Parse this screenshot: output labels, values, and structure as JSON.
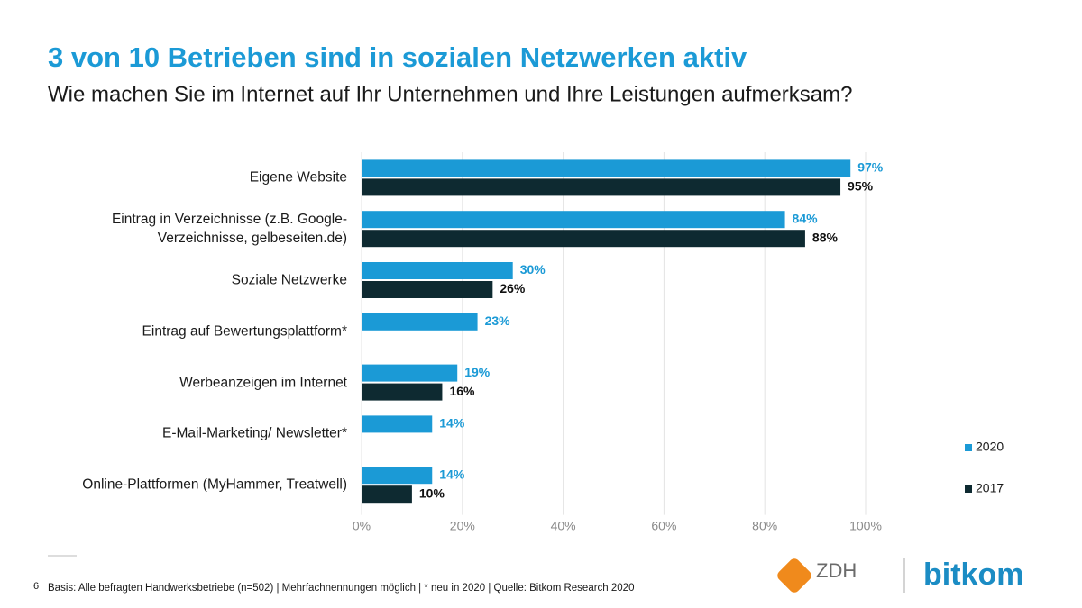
{
  "chart_data": {
    "type": "bar",
    "orientation": "horizontal",
    "title": "3 von 10 Betrieben sind in sozialen Netzwerken aktiv",
    "subtitle": "Wie machen Sie im Internet auf Ihr Unternehmen und Ihre Leistungen aufmerksam?",
    "categories": [
      "Eigene Website",
      "Eintrag in Verzeichnisse (z.B. Google-\nVerzeichnisse, gelbeseiten.de)",
      "Soziale Netzwerke",
      "Eintrag auf Bewertungsplattform*",
      "Werbeanzeigen im Internet",
      "E-Mail-Marketing/ Newsletter*",
      "Online-Plattformen (MyHammer, Treatwell)"
    ],
    "series": [
      {
        "name": "2020",
        "color": "#1b9ad6",
        "values": [
          97,
          84,
          30,
          23,
          19,
          14,
          14
        ],
        "value_labels": [
          "97%",
          "84%",
          "30%",
          "23%",
          "19%",
          "14%",
          "14%"
        ]
      },
      {
        "name": "2017",
        "color": "#0e2a31",
        "values": [
          95,
          88,
          26,
          null,
          16,
          null,
          10
        ],
        "value_labels": [
          "95%",
          "88%",
          "26%",
          null,
          "16%",
          null,
          "10%"
        ]
      }
    ],
    "xlim": [
      0,
      100
    ],
    "xticks": [
      {
        "value": 0,
        "label": "0%"
      },
      {
        "value": 20,
        "label": "20%"
      },
      {
        "value": 40,
        "label": "40%"
      },
      {
        "value": 60,
        "label": "60%"
      },
      {
        "value": 80,
        "label": "80%"
      },
      {
        "value": 100,
        "label": "100%"
      }
    ],
    "grid": true,
    "legend": "right"
  },
  "footer": {
    "page": "6",
    "note": "Basis: Alle befragten Handwerksbetriebe (n=502) | Mehrfachnennungen möglich | * neu in 2020 | Quelle: Bitkom Research 2020",
    "logos": [
      "ZDH",
      "bitkom"
    ]
  }
}
